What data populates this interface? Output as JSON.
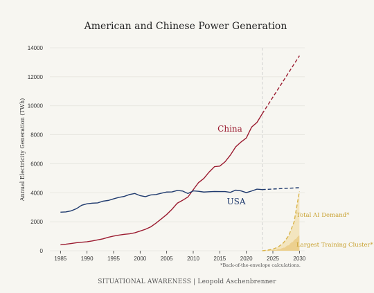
{
  "chart_data": {
    "type": "line",
    "title": "American and Chinese Power Generation",
    "ylabel": "Annual Electricity Generation (TWh)",
    "xlabel": "",
    "xlim": [
      1983,
      2031
    ],
    "ylim": [
      0,
      14000
    ],
    "xticks": [
      1985,
      1990,
      1995,
      2000,
      2005,
      2010,
      2015,
      2020,
      2025,
      2030
    ],
    "yticks": [
      0,
      2000,
      4000,
      6000,
      8000,
      10000,
      12000,
      14000
    ],
    "grid": true,
    "projection_start": 2023,
    "series": [
      {
        "name": "China",
        "color": "#9b1b30",
        "actual": {
          "x": [
            1985,
            1986,
            1987,
            1988,
            1989,
            1990,
            1991,
            1992,
            1993,
            1994,
            1995,
            1996,
            1997,
            1998,
            1999,
            2000,
            2001,
            2002,
            2003,
            2004,
            2005,
            2006,
            2007,
            2008,
            2009,
            2010,
            2011,
            2012,
            2013,
            2014,
            2015,
            2016,
            2017,
            2018,
            2019,
            2020,
            2021,
            2022,
            2023
          ],
          "y": [
            410,
            450,
            500,
            550,
            590,
            620,
            680,
            750,
            820,
            930,
            1010,
            1080,
            1130,
            1170,
            1240,
            1360,
            1480,
            1650,
            1910,
            2200,
            2500,
            2860,
            3280,
            3480,
            3710,
            4210,
            4700,
            4990,
            5430,
            5800,
            5840,
            6140,
            6600,
            7170,
            7500,
            7780,
            8530,
            8850,
            9450
          ]
        },
        "projected": {
          "x": [
            2023,
            2030
          ],
          "y": [
            9450,
            13450
          ]
        }
      },
      {
        "name": "USA",
        "color": "#1f3a6e",
        "actual": {
          "x": [
            1985,
            1986,
            1987,
            1988,
            1989,
            1990,
            1991,
            1992,
            1993,
            1994,
            1995,
            1996,
            1997,
            1998,
            1999,
            2000,
            2001,
            2002,
            2003,
            2004,
            2005,
            2006,
            2007,
            2008,
            2009,
            2010,
            2011,
            2012,
            2013,
            2014,
            2015,
            2016,
            2017,
            2018,
            2019,
            2020,
            2021,
            2022,
            2023
          ],
          "y": [
            2660,
            2680,
            2750,
            2900,
            3140,
            3240,
            3280,
            3300,
            3420,
            3470,
            3580,
            3680,
            3750,
            3880,
            3950,
            3800,
            3730,
            3850,
            3880,
            3970,
            4050,
            4060,
            4160,
            4120,
            3950,
            4130,
            4100,
            4050,
            4070,
            4090,
            4080,
            4080,
            4030,
            4180,
            4130,
            4010,
            4120,
            4250,
            4220
          ]
        },
        "projected": {
          "x": [
            2023,
            2030
          ],
          "y": [
            4220,
            4350
          ]
        }
      },
      {
        "name": "Total AI Demand*",
        "color": "#d9b44a",
        "x": [
          2023,
          2024,
          2025,
          2026,
          2027,
          2028,
          2029,
          2030
        ],
        "y": [
          0,
          40,
          110,
          260,
          550,
          1050,
          2000,
          4100
        ]
      },
      {
        "name": "Largest Training Cluster*",
        "color": "#ecd193",
        "x": [
          2023,
          2024,
          2025,
          2026,
          2027,
          2028,
          2029,
          2030
        ],
        "y": [
          0,
          10,
          30,
          80,
          180,
          380,
          700,
          1050
        ]
      }
    ],
    "footnote": "*Back-of-the-envelope calculations.",
    "source": "SITUATIONAL AWARENESS | Leopold Aschenbrenner"
  }
}
